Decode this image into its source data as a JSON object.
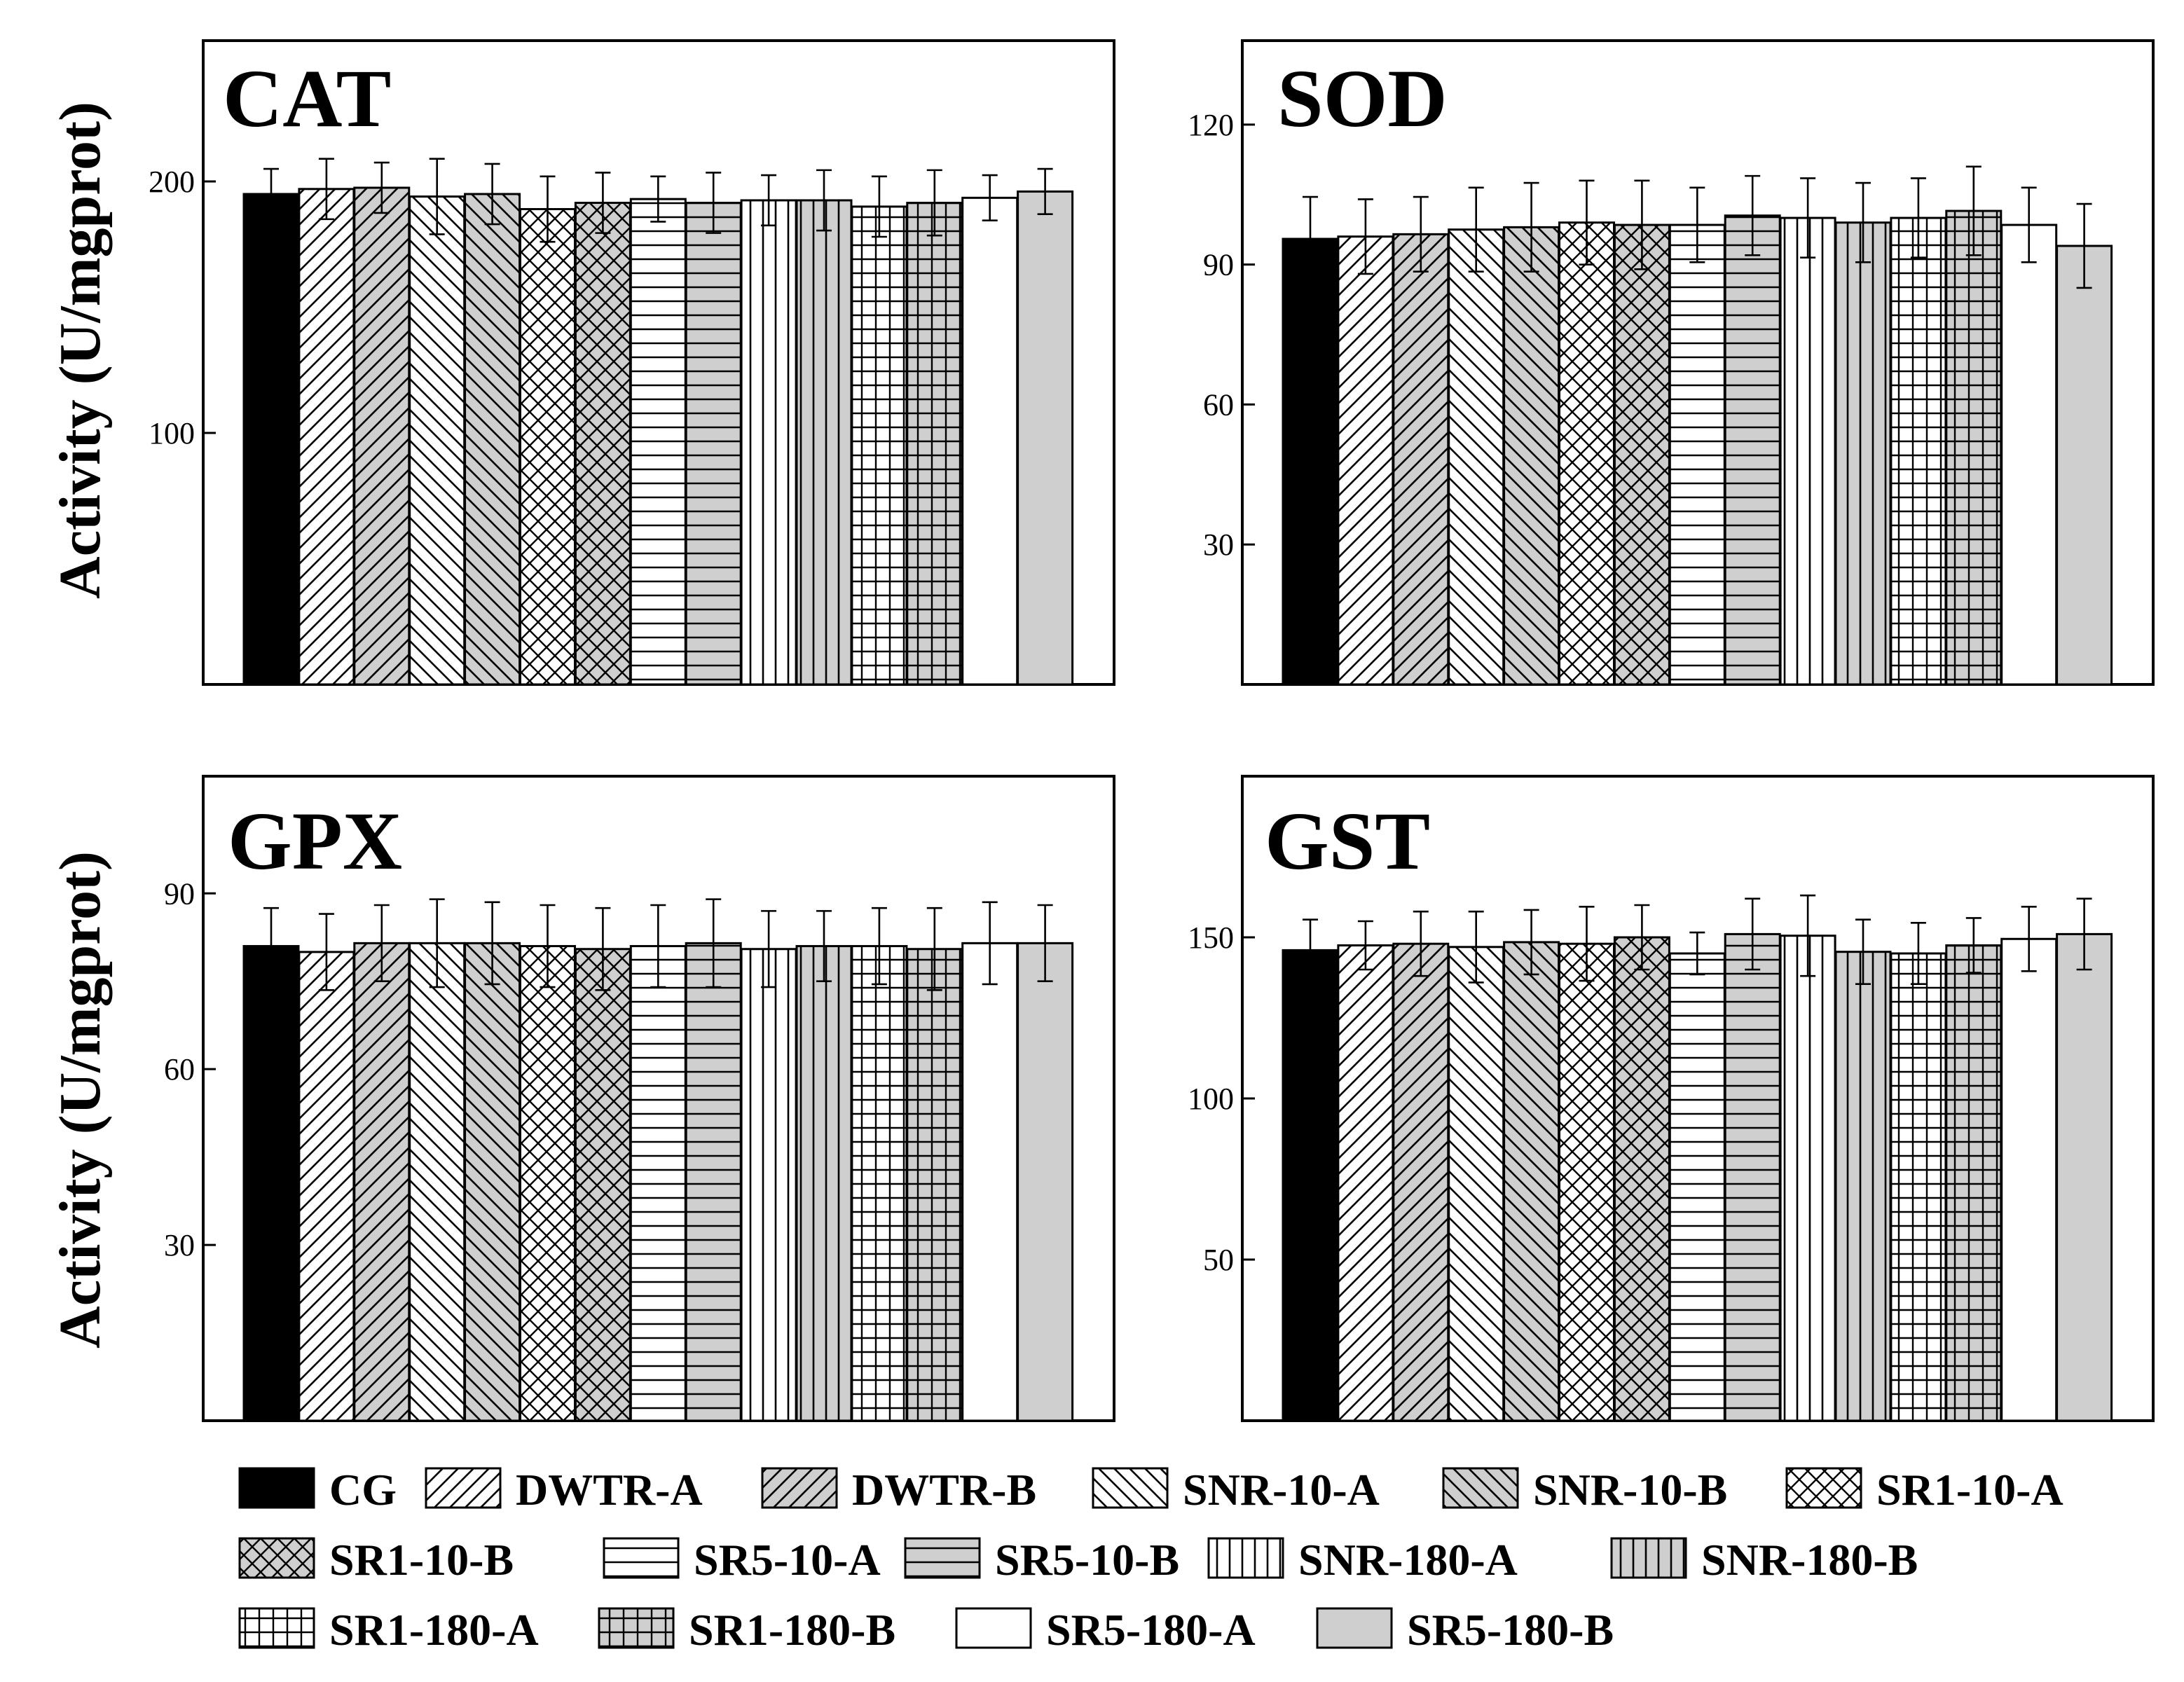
{
  "figure": {
    "ylabel": "Activity (U/mgprot)"
  },
  "groups": [
    {
      "name": "CG",
      "pattern": "solid-black"
    },
    {
      "name": "DWTR-A",
      "pattern": "fwd-white"
    },
    {
      "name": "DWTR-B",
      "pattern": "fwd-gray"
    },
    {
      "name": "SNR-10-A",
      "pattern": "back-white"
    },
    {
      "name": "SNR-10-B",
      "pattern": "back-gray"
    },
    {
      "name": "SR1-10-A",
      "pattern": "cross-white"
    },
    {
      "name": "SR1-10-B",
      "pattern": "cross-gray"
    },
    {
      "name": "SR5-10-A",
      "pattern": "horiz-white"
    },
    {
      "name": "SR5-10-B",
      "pattern": "horiz-gray"
    },
    {
      "name": "SNR-180-A",
      "pattern": "vert-white"
    },
    {
      "name": "SNR-180-B",
      "pattern": "vert-gray"
    },
    {
      "name": "SR1-180-A",
      "pattern": "grid-white"
    },
    {
      "name": "SR1-180-B",
      "pattern": "grid-gray"
    },
    {
      "name": "SR5-180-A",
      "pattern": "plain-white"
    },
    {
      "name": "SR5-180-B",
      "pattern": "plain-gray"
    }
  ],
  "colors": {
    "black": "#000000",
    "white": "#ffffff",
    "gray": "#cfcfcf"
  },
  "chart_data": [
    {
      "type": "bar",
      "title": "CAT",
      "ylabel": "Activity (U/mgprot)",
      "ylim": [
        0,
        256
      ],
      "yticks": [
        100,
        200
      ],
      "values": [
        195,
        197,
        197.5,
        194,
        195,
        189,
        191.5,
        193,
        191.5,
        192.5,
        192.5,
        190,
        191.5,
        193.5,
        196
      ],
      "errors": [
        10,
        12,
        10,
        15,
        12,
        13,
        12,
        9,
        12,
        10,
        12,
        12,
        13,
        9,
        9
      ]
    },
    {
      "type": "bar",
      "title": "SOD",
      "ylabel": "",
      "ylim": [
        0,
        138
      ],
      "yticks": [
        30,
        60,
        90,
        120
      ],
      "values": [
        95.5,
        96,
        96.5,
        97.5,
        98,
        99,
        98.5,
        98.5,
        100.5,
        100,
        99,
        100,
        101.5,
        98.5,
        94
      ],
      "errors": [
        9,
        8,
        8,
        9,
        9.5,
        9,
        9.5,
        8,
        8.5,
        8.5,
        8.5,
        8.5,
        9.5,
        8,
        9
      ]
    },
    {
      "type": "bar",
      "title": "GPX",
      "ylabel": "Activity (U/mgprot)",
      "ylim": [
        0,
        110
      ],
      "yticks": [
        30,
        60,
        90
      ],
      "values": [
        81,
        80,
        81.5,
        81.5,
        81.5,
        81,
        80.5,
        81,
        81.5,
        80.5,
        81,
        81,
        80.5,
        81.5,
        81.5
      ],
      "errors": [
        6.5,
        6.5,
        6.5,
        7.5,
        7,
        7,
        7,
        7,
        7.5,
        6.5,
        6,
        6.5,
        7,
        7,
        6.5
      ]
    },
    {
      "type": "bar",
      "title": "GST",
      "ylabel": "",
      "ylim": [
        0,
        200
      ],
      "yticks": [
        50,
        100,
        150
      ],
      "values": [
        146,
        147.5,
        148,
        147,
        148.5,
        148,
        150,
        145,
        151,
        150.5,
        145.5,
        145,
        147.5,
        149.5,
        151
      ],
      "errors": [
        9.5,
        7.5,
        10,
        11,
        10,
        11.5,
        10,
        6.5,
        11,
        12.5,
        10,
        9.5,
        8.5,
        10,
        11
      ]
    }
  ]
}
